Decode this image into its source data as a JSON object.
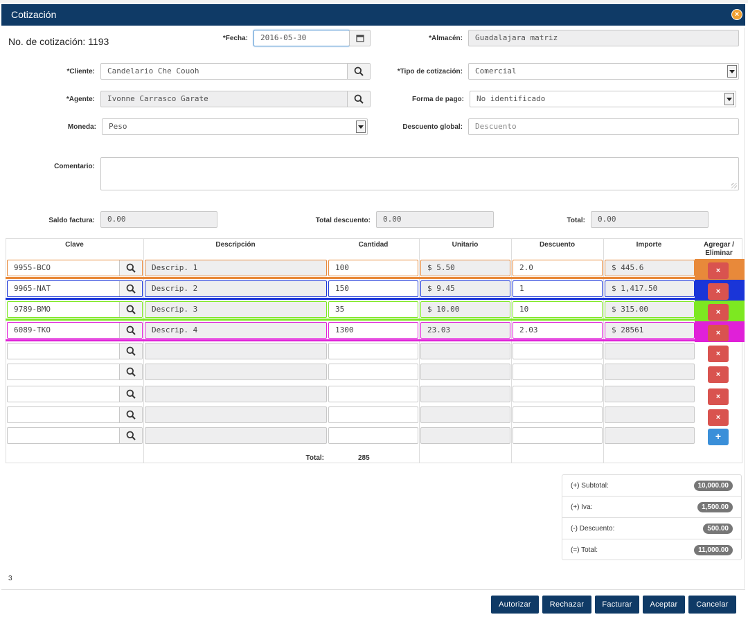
{
  "window": {
    "title": "Cotización"
  },
  "form": {
    "quote_number": "No. de cotización: 1193",
    "fecha": {
      "label": "*Fecha:",
      "value": "2016-05-30"
    },
    "almacen": {
      "label": "*Almacén:",
      "value": "Guadalajara matriz"
    },
    "cliente": {
      "label": "*Cliente:",
      "value": "Candelario Che Couoh"
    },
    "tipo": {
      "label": "*Tipo de cotización:",
      "value": "Comercial"
    },
    "agente": {
      "label": "*Agente:",
      "value": "Ivonne Carrasco Garate"
    },
    "forma_pago": {
      "label": "Forma de pago:",
      "value": "No identificado"
    },
    "moneda": {
      "label": "Moneda:",
      "value": "Peso"
    },
    "descuento_global": {
      "label": "Descuento global:",
      "placeholder": "Descuento"
    },
    "comentario": {
      "label": "Comentario:"
    },
    "saldo": {
      "label": "Saldo factura:",
      "value": "0.00"
    },
    "total_descuento": {
      "label": "Total descuento:",
      "value": "0.00"
    },
    "total": {
      "label": "Total:",
      "value": "0.00"
    }
  },
  "table": {
    "headers": {
      "clave": "Clave",
      "descripcion": "Descripción",
      "cantidad": "Cantidad",
      "unitario": "Unitario",
      "descuento": "Descuento",
      "importe": "Importe",
      "acciones": "Agregar / Eliminar"
    },
    "rows": [
      {
        "clave": "9955-BCO",
        "descripcion": "Descrip. 1",
        "cantidad": "100",
        "unitario": "$ 5.50",
        "descuento": "2.0",
        "importe": "$ 445.6",
        "color": "#e8893a"
      },
      {
        "clave": "9965-NAT",
        "descripcion": "Descrip. 2",
        "cantidad": "150",
        "unitario": "$ 9.45",
        "descuento": "1",
        "importe": "$ 1,417.50",
        "color": "#1a35d8"
      },
      {
        "clave": "9789-BMO",
        "descripcion": "Descrip. 3",
        "cantidad": "35",
        "unitario": "$ 10.00",
        "descuento": "10",
        "importe": "$ 315.00",
        "color": "#7de821"
      },
      {
        "clave": "6089-TKO",
        "descripcion": "Descrip. 4",
        "cantidad": "1300",
        "unitario": "23.03",
        "descuento": "2.03",
        "importe": "$ 28561",
        "color": "#e020d8"
      }
    ],
    "total_label": "Total:",
    "total_value": "285",
    "delete_symbol": "×",
    "add_symbol": "+"
  },
  "summary": {
    "subtotal": {
      "label": "(+) Subtotal:",
      "value": "10,000.00"
    },
    "iva": {
      "label": "(+) Iva:",
      "value": "1,500.00"
    },
    "descuento": {
      "label": "(-) Descuento:",
      "value": "500.00"
    },
    "total": {
      "label": "(=) Total:",
      "value": "11,000.00"
    }
  },
  "page_indicator": "3",
  "buttons": {
    "autorizar": "Autorizar",
    "rechazar": "Rechazar",
    "facturar": "Facturar",
    "aceptar": "Aceptar",
    "cancelar": "Cancelar"
  }
}
